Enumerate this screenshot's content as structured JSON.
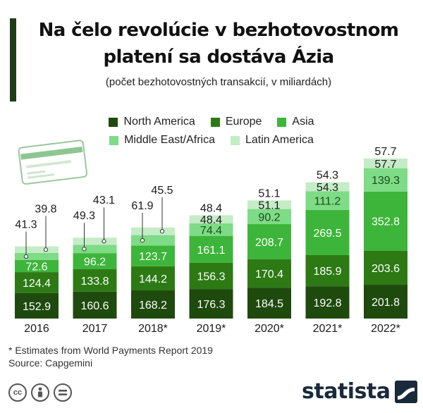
{
  "header": {
    "title_line1": "Na čelo revolúcie v bezhotovostnom",
    "title_line2": "platení sa dostáva Ázia",
    "subtitle": "(počet bezhotovostných transakcií, v miliardách)"
  },
  "colors": {
    "north_america": "#1f4a0e",
    "europe": "#2d7a15",
    "asia": "#3db53a",
    "middle_east_africa": "#7edb86",
    "latin_america": "#c4ecc6",
    "title_bar": "#1f3d14"
  },
  "chart_data": {
    "type": "bar",
    "stacked": true,
    "categories": [
      "2016",
      "2017",
      "2018*",
      "2019*",
      "2020*",
      "2021*",
      "2022*"
    ],
    "series": [
      {
        "name": "North America",
        "values": [
          152.9,
          160.6,
          168.2,
          176.3,
          184.5,
          192.8,
          201.8
        ]
      },
      {
        "name": "Europe",
        "values": [
          124.4,
          133.8,
          144.2,
          156.3,
          170.4,
          185.9,
          203.6
        ]
      },
      {
        "name": "Asia",
        "values": [
          72.6,
          96.2,
          123.7,
          161.1,
          208.7,
          269.5,
          352.8
        ]
      },
      {
        "name": "Middle East/Africa",
        "values": [
          41.3,
          49.3,
          61.9,
          74.4,
          90.2,
          111.2,
          139.3
        ]
      },
      {
        "name": "Latin America",
        "values": [
          39.8,
          43.1,
          45.5,
          48.4,
          51.1,
          54.3,
          57.7
        ]
      }
    ],
    "legend_position": "top",
    "grid": false
  },
  "footnote": {
    "line1": "* Estimates from World Payments Report 2019",
    "line2": "Source: Capgemini"
  },
  "license": {
    "icons": [
      "creative-commons-icon",
      "attribution-icon",
      "no-derivatives-icon"
    ]
  },
  "brand": {
    "name": "statista"
  }
}
